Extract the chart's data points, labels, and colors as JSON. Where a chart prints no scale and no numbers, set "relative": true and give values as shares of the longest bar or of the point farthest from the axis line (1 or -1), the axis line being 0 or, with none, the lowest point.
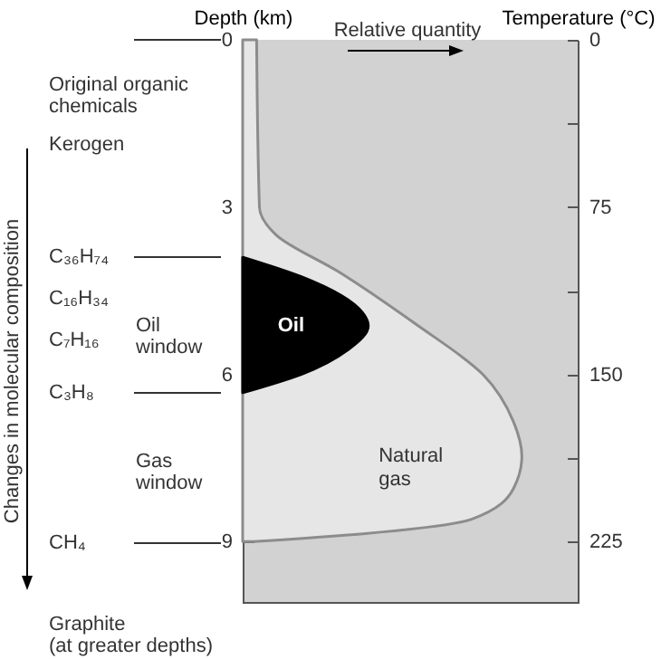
{
  "chart_data": {
    "type": "area",
    "orientation": "horizontal",
    "relative": true,
    "xlabel": "Relative quantity",
    "ylabel": "Depth (km)",
    "y2label": "Temperature (°C)",
    "ylim": [
      10.1,
      0
    ],
    "yticks": [
      0,
      {
        "value": 1.5,
        "label": null
      },
      3,
      {
        "value": 4.5,
        "label": null
      },
      6,
      {
        "value": 7.5,
        "label": null
      },
      9
    ],
    "y2lim": [
      252.5,
      0
    ],
    "y2ticks": [
      0,
      {
        "value": 37.5,
        "label": null
      },
      75,
      {
        "value": 112.5,
        "label": null
      },
      150,
      {
        "value": 187.5,
        "label": null
      },
      225
    ],
    "series": [
      {
        "name": "Natural gas",
        "color": "#e6e6e6",
        "x": [
          0,
          3,
          3.5,
          4.15,
          5.1,
          6,
          6.85,
          7.47,
          8.05,
          8.6,
          8.86,
          9
        ],
        "values": [
          0.05,
          0.06,
          0.12,
          0.34,
          0.62,
          0.86,
          0.97,
          1,
          0.97,
          0.82,
          0.43,
          0.04
        ]
      },
      {
        "name": "Oil",
        "color": "#000000",
        "x": [
          3.9,
          4.25,
          4.9,
          5.13,
          5.55,
          6,
          6.33
        ],
        "values": [
          0,
          0.21,
          0.43,
          0.45,
          0.38,
          0.21,
          0
        ]
      }
    ],
    "annotations": [
      "Original organic\nchemicals",
      "Kerogen",
      "C₃₆H₇₄",
      "C₁₆H₃₄",
      "C₇H₁₆",
      "C₃H₈",
      "CH₄",
      "Oil\nwindow",
      "Gas\nwindow",
      "Graphite\n(at greater depths)",
      "Changes in molecular composition"
    ]
  }
}
